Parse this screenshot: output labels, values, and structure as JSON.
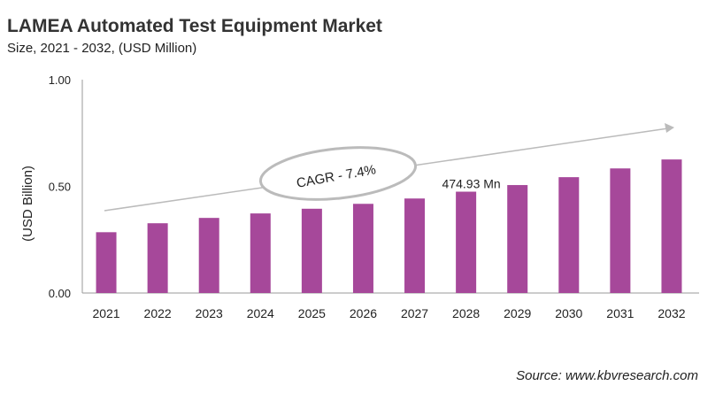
{
  "chart_data": {
    "type": "bar",
    "title": "LAMEA Automated Test Equipment Market",
    "subtitle": "Size, 2021 - 2032, (USD Million)",
    "xlabel": "",
    "ylabel": "(USD Billion)",
    "categories": [
      "2021",
      "2022",
      "2023",
      "2024",
      "2025",
      "2026",
      "2027",
      "2028",
      "2029",
      "2030",
      "2031",
      "2032"
    ],
    "values": [
      0.285,
      0.327,
      0.352,
      0.373,
      0.395,
      0.418,
      0.443,
      0.475,
      0.506,
      0.543,
      0.584,
      0.626
    ],
    "ylim": [
      0,
      1.0
    ],
    "yticks": [
      "0.00",
      "0.50",
      "1.00"
    ],
    "grid": false,
    "bar_color": "#A6489A",
    "annotations": {
      "data_label": "474.93 Mn",
      "data_label_category": "2028",
      "cagr": "CAGR - 7.4%"
    },
    "source": "Source: www.kbvresearch.com"
  }
}
